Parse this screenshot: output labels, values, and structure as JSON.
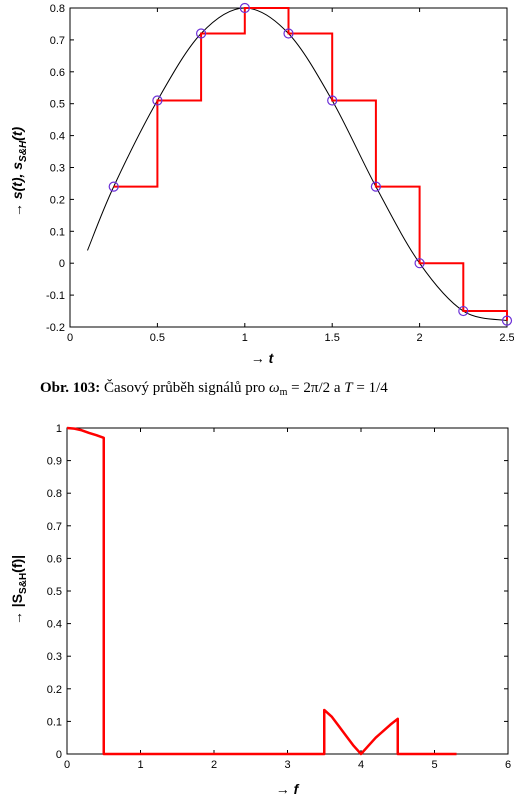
{
  "caption": {
    "label": "Obr. 103:",
    "text_before": "Časový průběh signálů pro ",
    "omega": "ω",
    "omega_sub": "m",
    "text_mid": " = 2π/2 a ",
    "T": "T",
    "text_end": " = 1/4"
  },
  "chart_data": [
    {
      "type": "line",
      "xlabel_arrow": "→",
      "xlabel": "t",
      "ylabel_arrow": "→",
      "ylabel_main": "s(t), s",
      "ylabel_sub": "S&H",
      "ylabel_tail": "(t)",
      "xlim": [
        0,
        2.5
      ],
      "ylim": [
        -0.2,
        0.8
      ],
      "xticks": [
        0,
        0.5,
        1,
        1.5,
        2,
        2.5
      ],
      "xtick_labels": [
        "0",
        "0.5",
        "1",
        "1.5",
        "2",
        "2.5"
      ],
      "yticks": [
        -0.2,
        -0.1,
        0,
        0.1,
        0.2,
        0.3,
        0.4,
        0.5,
        0.6,
        0.7,
        0.8
      ],
      "ytick_labels": [
        "-0.2",
        "-0.1",
        "0",
        "0.1",
        "0.2",
        "0.3",
        "0.4",
        "0.5",
        "0.6",
        "0.7",
        "0.8"
      ],
      "grid": false,
      "colors": {
        "continuous": "#000000",
        "sample_hold": "#ff0000",
        "samples": "#6b2fd6"
      },
      "continuous": {
        "x": [
          0.1,
          0.25,
          0.5,
          0.75,
          1.0,
          1.25,
          1.5,
          1.75,
          2.0,
          2.25,
          2.5
        ],
        "y": [
          0.04,
          0.24,
          0.51,
          0.72,
          0.8,
          0.72,
          0.51,
          0.24,
          0.0,
          -0.15,
          -0.18
        ]
      },
      "samples": {
        "x": [
          0.25,
          0.5,
          0.75,
          1.0,
          1.25,
          1.5,
          1.75,
          2.0,
          2.25,
          2.5
        ],
        "y": [
          0.24,
          0.51,
          0.72,
          0.8,
          0.72,
          0.51,
          0.24,
          0.0,
          -0.15,
          -0.18
        ]
      },
      "sample_hold": {
        "x": [
          0.25,
          0.5,
          0.5,
          0.75,
          0.75,
          1.0,
          1.0,
          1.25,
          1.25,
          1.5,
          1.5,
          1.75,
          1.75,
          2.0,
          2.0,
          2.25,
          2.25,
          2.5,
          2.5
        ],
        "y": [
          0.24,
          0.24,
          0.51,
          0.51,
          0.72,
          0.72,
          0.8,
          0.8,
          0.72,
          0.72,
          0.51,
          0.51,
          0.24,
          0.24,
          0.0,
          0.0,
          -0.15,
          -0.15,
          -0.18
        ]
      }
    },
    {
      "type": "line",
      "xlabel_arrow": "→",
      "xlabel": "f",
      "ylabel_arrow": "→",
      "ylabel_main": "|S",
      "ylabel_sub": "S&H",
      "ylabel_tail": "(f)|",
      "xlim": [
        0,
        6
      ],
      "ylim": [
        0,
        1
      ],
      "xticks": [
        0,
        1,
        2,
        3,
        4,
        5,
        6
      ],
      "xtick_labels": [
        "0",
        "1",
        "2",
        "3",
        "4",
        "5",
        "6"
      ],
      "yticks": [
        0,
        0.1,
        0.2,
        0.3,
        0.4,
        0.5,
        0.6,
        0.7,
        0.8,
        0.9,
        1
      ],
      "ytick_labels": [
        "0",
        "0.1",
        "0.2",
        "0.3",
        "0.4",
        "0.5",
        "0.6",
        "0.7",
        "0.8",
        "0.9",
        "1"
      ],
      "grid": false,
      "colors": {
        "spectrum": "#ff0000"
      },
      "spectrum": {
        "x": [
          0,
          0.1,
          0.2,
          0.3,
          0.4,
          0.5,
          0.5,
          3.5,
          3.5,
          3.6,
          3.7,
          3.8,
          3.9,
          4.0,
          4.1,
          4.2,
          4.3,
          4.4,
          4.5,
          4.5,
          5.3
        ],
        "y": [
          1.0,
          0.998,
          0.993,
          0.985,
          0.978,
          0.97,
          0.0,
          0.0,
          0.135,
          0.115,
          0.085,
          0.055,
          0.025,
          0.0,
          0.025,
          0.05,
          0.07,
          0.09,
          0.108,
          0.0,
          0.0
        ]
      }
    }
  ]
}
